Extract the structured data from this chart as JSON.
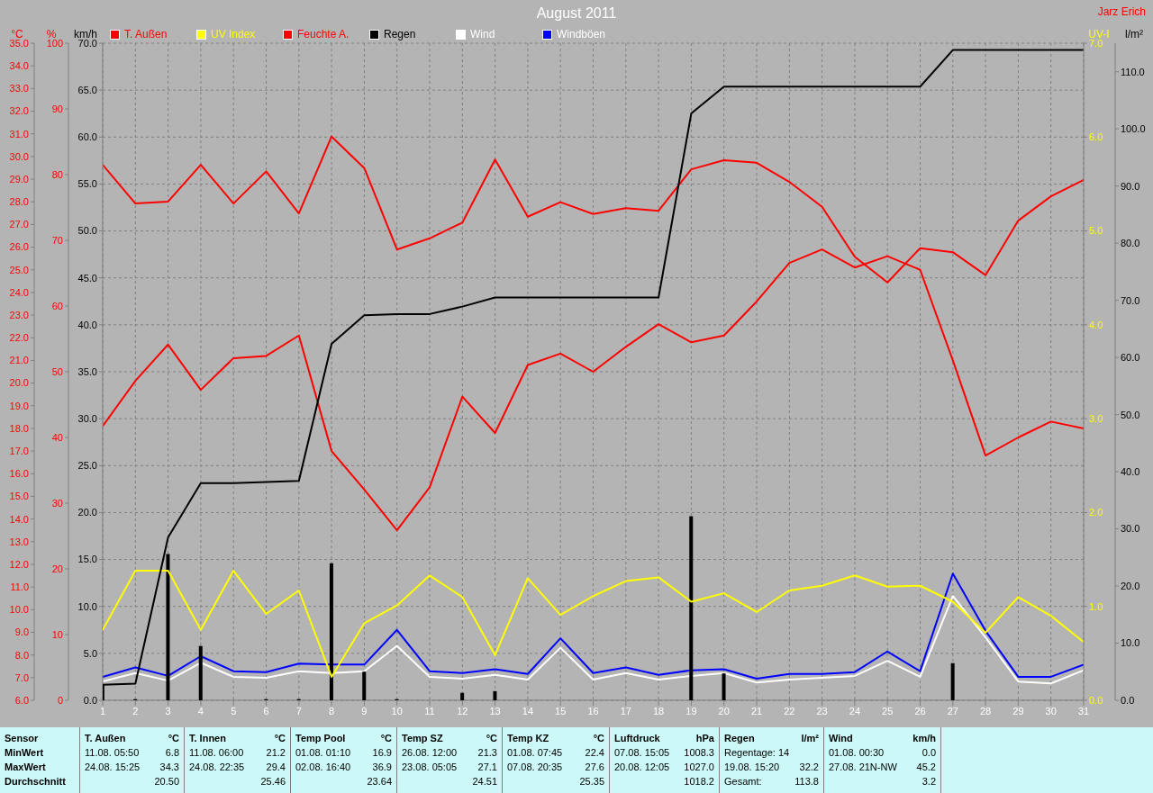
{
  "chart_data": [
    {
      "type": "line",
      "title": "August 2011",
      "x": [
        1,
        2,
        3,
        4,
        5,
        6,
        7,
        8,
        9,
        10,
        11,
        12,
        13,
        14,
        15,
        16,
        17,
        18,
        19,
        20,
        21,
        22,
        23,
        24,
        25,
        26,
        27,
        28,
        29,
        30,
        31
      ],
      "xlim": [
        1,
        31
      ],
      "xticks": [
        1,
        2,
        3,
        4,
        5,
        6,
        7,
        8,
        9,
        10,
        11,
        12,
        13,
        14,
        15,
        16,
        17,
        18,
        19,
        20,
        21,
        22,
        23,
        24,
        25,
        26,
        27,
        28,
        29,
        30,
        31
      ],
      "ylabel": "°C",
      "y2label": "%",
      "y3label": "km/h",
      "ylim": [
        6,
        35
      ],
      "yticks": [
        {
          "value": 6,
          "label": "6.0"
        },
        {
          "value": 7,
          "label": "7.0"
        },
        {
          "value": 8,
          "label": "8.0"
        },
        {
          "value": 9,
          "label": "9.0"
        },
        {
          "value": 10,
          "label": "10.0"
        },
        {
          "value": 11,
          "label": "11.0"
        },
        {
          "value": 12,
          "label": "12.0"
        },
        {
          "value": 13,
          "label": "13.0"
        },
        {
          "value": 14,
          "label": "14.0"
        },
        {
          "value": 15,
          "label": "15.0"
        },
        {
          "value": 16,
          "label": "16.0"
        },
        {
          "value": 17,
          "label": "17.0"
        },
        {
          "value": 18,
          "label": "18.0"
        },
        {
          "value": 19,
          "label": "19.0"
        },
        {
          "value": 20,
          "label": "20.0"
        },
        {
          "value": 21,
          "label": "21.0"
        },
        {
          "value": 22,
          "label": "22.0"
        },
        {
          "value": 23,
          "label": "23.0"
        },
        {
          "value": 24,
          "label": "24.0"
        },
        {
          "value": 25,
          "label": "25.0"
        },
        {
          "value": 26,
          "label": "26.0"
        },
        {
          "value": 27,
          "label": "27.0"
        },
        {
          "value": 28,
          "label": "28.0"
        },
        {
          "value": 29,
          "label": "29.0"
        },
        {
          "value": 30,
          "label": "30.0"
        },
        {
          "value": 31,
          "label": "31.0"
        },
        {
          "value": 32,
          "label": "32.0"
        },
        {
          "value": 33,
          "label": "33.0"
        },
        {
          "value": 34,
          "label": "34.0"
        },
        {
          "value": 35,
          "label": "35.0"
        }
      ],
      "y2lim": [
        0,
        100
      ],
      "y2ticks": [
        0,
        10,
        20,
        30,
        40,
        50,
        60,
        70,
        80,
        90,
        100
      ],
      "y3lim": [
        0,
        70
      ],
      "y3ticks": [
        {
          "value": 0,
          "label": "0.0"
        },
        {
          "value": 5,
          "label": "5.0"
        },
        {
          "value": 10,
          "label": "10.0"
        },
        {
          "value": 15,
          "label": "15.0"
        },
        {
          "value": 20,
          "label": "20.0"
        },
        {
          "value": 25,
          "label": "25.0"
        },
        {
          "value": 30,
          "label": "30.0"
        },
        {
          "value": 35,
          "label": "35.0"
        },
        {
          "value": 40,
          "label": "40.0"
        },
        {
          "value": 45,
          "label": "45.0"
        },
        {
          "value": 50,
          "label": "50.0"
        },
        {
          "value": 55,
          "label": "55.0"
        },
        {
          "value": 60,
          "label": "60.0"
        },
        {
          "value": 65,
          "label": "65.0"
        },
        {
          "value": 70,
          "label": "70.0"
        }
      ],
      "grid": true,
      "legend": "top",
      "series": [
        {
          "name": "T. Außen",
          "color": "#ff0000",
          "values": [
            18.1,
            20.1,
            21.7,
            19.7,
            21.1,
            21.2,
            22.1,
            17.0,
            15.3,
            13.5,
            15.4,
            19.4,
            17.8,
            20.8,
            21.3,
            20.5,
            21.6,
            22.6,
            21.8,
            22.1,
            23.6,
            25.3,
            25.9,
            25.1,
            25.6,
            25.0,
            21.0,
            16.8,
            17.6,
            18.3,
            18.0
          ]
        },
        {
          "name": "Feuchte A.",
          "color": "#ff0000",
          "axis": "y2",
          "values": [
            81.5,
            75.6,
            75.9,
            81.5,
            75.6,
            80.5,
            74.1,
            85.8,
            81.0,
            68.6,
            70.3,
            72.7,
            82.3,
            73.6,
            75.8,
            74.0,
            74.9,
            74.5,
            80.8,
            82.2,
            81.8,
            78.9,
            75.1,
            67.5,
            63.6,
            68.8,
            68.2,
            64.7,
            73.0,
            76.7,
            79.2
          ]
        },
        {
          "name": "Wind",
          "color": "#ffffff",
          "axis": "y3",
          "values": [
            2.0,
            2.9,
            2.1,
            4.0,
            2.5,
            2.4,
            3.1,
            2.9,
            3.1,
            5.8,
            2.5,
            2.3,
            2.7,
            2.2,
            5.6,
            2.2,
            2.9,
            2.2,
            2.6,
            2.9,
            1.9,
            2.2,
            2.4,
            2.6,
            4.2,
            2.5,
            11.1,
            6.7,
            2.0,
            1.8,
            3.2
          ]
        },
        {
          "name": "Windböen",
          "color": "#0000ff",
          "axis": "y3",
          "values": [
            2.5,
            3.5,
            2.6,
            4.7,
            3.1,
            3.0,
            3.9,
            3.8,
            3.8,
            7.5,
            3.1,
            2.9,
            3.3,
            2.8,
            6.6,
            2.9,
            3.5,
            2.7,
            3.2,
            3.3,
            2.3,
            2.8,
            2.8,
            3.0,
            5.2,
            3.1,
            13.5,
            7.4,
            2.5,
            2.5,
            3.8
          ]
        }
      ],
      "annotations": [
        "Jarz Erich",
        "Sensor",
        "MinWert",
        "MaxWert",
        "Durchschnitt",
        "T. Außen",
        "°C",
        "11.08. 05:50",
        "6.8",
        "24.08. 15:25",
        "34.3",
        "20.50",
        "T. Innen",
        "°C",
        "11.08. 06:00",
        "21.2",
        "24.08. 22:35",
        "29.4",
        "25.46",
        "Temp Pool",
        "°C",
        "01.08. 01:10",
        "16.9",
        "02.08. 16:40",
        "36.9",
        "23.64",
        "Temp SZ",
        "°C",
        "26.08. 12:00",
        "21.3",
        "23.08. 05:05",
        "27.1",
        "24.51",
        "Temp KZ",
        "°C",
        "01.08. 07:45",
        "22.4",
        "07.08. 20:35",
        "27.6",
        "25.35",
        "Luftdruck",
        "hPa",
        "07.08. 15:05",
        "1008.3",
        "20.08. 12:05",
        "1027.0",
        "1018.2",
        "Regen",
        "l/m²",
        "Regentage: 14",
        "19.08. 15:20",
        "32.2",
        "Gesamt:",
        "113.8",
        "Wind",
        "km/h",
        "01.08. 00:30",
        "0.0",
        "27.08. 21N-NW",
        "45.2",
        "3.2"
      ]
    },
    {
      "type": "line",
      "tick_labels": "y",
      "x": [
        1,
        2,
        3,
        4,
        5,
        6,
        7,
        8,
        9,
        10,
        11,
        12,
        13,
        14,
        15,
        16,
        17,
        18,
        19,
        20,
        21,
        22,
        23,
        24,
        25,
        26,
        27,
        28,
        29,
        30,
        31
      ],
      "xlim": [
        1,
        31
      ],
      "ylabel": "UV-I",
      "y2label": "l/m²",
      "ylim": [
        0,
        7
      ],
      "yticks": [
        {
          "value": 0,
          "label": "0.0"
        },
        {
          "value": 1,
          "label": "1.0"
        },
        {
          "value": 2,
          "label": "2.0"
        },
        {
          "value": 3,
          "label": "3.0"
        },
        {
          "value": 4,
          "label": "4.0"
        },
        {
          "value": 5,
          "label": "5.0"
        },
        {
          "value": 6,
          "label": "6.0"
        },
        {
          "value": 7,
          "label": "7.0"
        }
      ],
      "y2lim": [
        0,
        115
      ],
      "y2ticks": [
        {
          "value": 0,
          "label": "0.0"
        },
        {
          "value": 10,
          "label": "10.0"
        },
        {
          "value": 20,
          "label": "20.0"
        },
        {
          "value": 30,
          "label": "30.0"
        },
        {
          "value": 40,
          "label": "40.0"
        },
        {
          "value": 50,
          "label": "50.0"
        },
        {
          "value": 60,
          "label": "60.0"
        },
        {
          "value": 70,
          "label": "70.0"
        },
        {
          "value": 80,
          "label": "80.0"
        },
        {
          "value": 90,
          "label": "90.0"
        },
        {
          "value": 100,
          "label": "100.0"
        },
        {
          "value": 110,
          "label": "110.0"
        }
      ],
      "legend": "top",
      "series": [
        {
          "name": "UV Index",
          "color": "#ffff00",
          "values": [
            0.75,
            1.38,
            1.38,
            0.75,
            1.38,
            0.92,
            1.17,
            0.25,
            0.82,
            1.01,
            1.33,
            1.1,
            0.48,
            1.3,
            0.91,
            1.11,
            1.27,
            1.31,
            1.05,
            1.14,
            0.94,
            1.17,
            1.22,
            1.33,
            1.21,
            1.22,
            1.05,
            0.72,
            1.1,
            0.9,
            0.62
          ]
        },
        {
          "name": "Regen",
          "color": "#000000",
          "axis": "y2",
          "values": [
            2.7,
            2.9,
            28.5,
            38.0,
            38.0,
            38.2,
            38.4,
            62.4,
            67.4,
            67.6,
            67.6,
            68.9,
            70.5,
            70.5,
            70.5,
            70.5,
            70.5,
            70.5,
            102.7,
            107.4,
            107.4,
            107.4,
            107.4,
            107.4,
            107.4,
            107.4,
            113.8,
            113.8,
            113.8,
            113.8,
            113.8
          ]
        },
        {
          "type": "bar",
          "color": "#000000",
          "axis": "y2",
          "values": [
            2.7,
            0.2,
            25.6,
            9.5,
            null,
            0.2,
            0.2,
            24.0,
            5.0,
            0.2,
            null,
            1.3,
            1.6,
            null,
            null,
            null,
            null,
            null,
            32.2,
            4.7,
            null,
            null,
            null,
            null,
            null,
            null,
            6.5,
            null,
            null,
            null,
            null
          ]
        }
      ]
    }
  ]
}
